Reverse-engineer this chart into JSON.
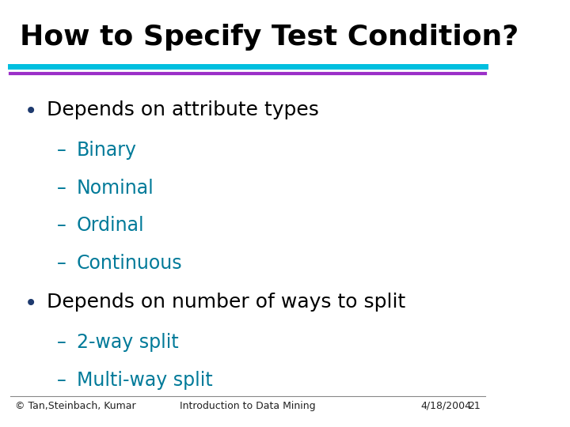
{
  "title": "How to Specify Test Condition?",
  "title_fontsize": 26,
  "title_font_weight": "bold",
  "title_color": "#000000",
  "bg_color": "#ffffff",
  "bar1_color": "#00BFDF",
  "bar2_color": "#9B30C8",
  "bullet_color": "#1E3A6E",
  "sub_color": "#007A99",
  "bullet1_text": "Depends on attribute types",
  "bullet1_subs": [
    "Binary",
    "Nominal",
    "Ordinal",
    "Continuous"
  ],
  "bullet2_text": "Depends on number of ways to split",
  "bullet2_subs": [
    "2-way split",
    "Multi-way split"
  ],
  "footer_left": "© Tan,Steinbach, Kumar",
  "footer_center": "Introduction to Data Mining",
  "footer_right": "4/18/2004",
  "footer_page": "21",
  "footer_fontsize": 9,
  "main_fontsize": 18,
  "sub_fontsize": 17
}
